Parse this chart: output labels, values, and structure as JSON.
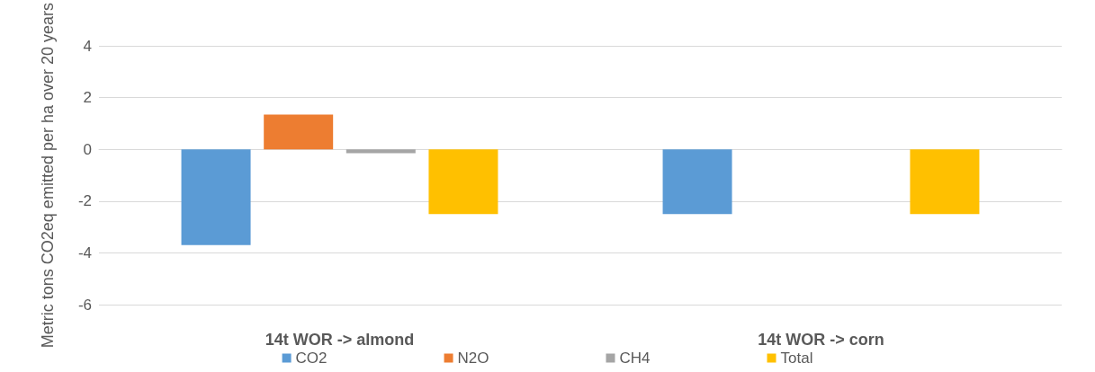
{
  "chart_data": {
    "type": "bar",
    "ylabel": "Metric tons CO2eq emitted per ha over 20 years",
    "categories": [
      "14t WOR -> almond",
      "14t WOR -> corn"
    ],
    "series": [
      {
        "name": "CO2",
        "color": "#5b9bd5",
        "values": [
          -3.7,
          -2.5
        ]
      },
      {
        "name": "N2O",
        "color": "#ed7d31",
        "values": [
          1.35,
          0
        ]
      },
      {
        "name": "CH4",
        "color": "#a5a5a5",
        "values": [
          -0.15,
          0
        ]
      },
      {
        "name": "Total",
        "color": "#ffc000",
        "values": [
          -2.5,
          -2.5
        ]
      }
    ],
    "ylim": [
      -6,
      4
    ],
    "yticks": [
      -6,
      -4,
      -2,
      0,
      2,
      4
    ],
    "grid": "y",
    "legend": "bottom"
  }
}
